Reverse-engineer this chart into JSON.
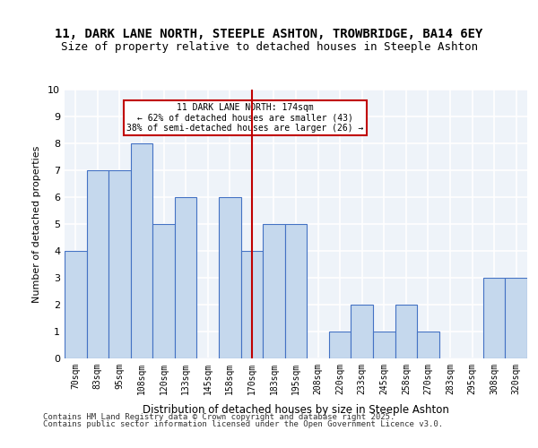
{
  "title": "11, DARK LANE NORTH, STEEPLE ASHTON, TROWBRIDGE, BA14 6EY",
  "subtitle": "Size of property relative to detached houses in Steeple Ashton",
  "xlabel": "Distribution of detached houses by size in Steeple Ashton",
  "ylabel": "Number of detached properties",
  "categories": [
    "70sqm",
    "83sqm",
    "95sqm",
    "108sqm",
    "120sqm",
    "133sqm",
    "145sqm",
    "158sqm",
    "170sqm",
    "183sqm",
    "195sqm",
    "208sqm",
    "220sqm",
    "233sqm",
    "245sqm",
    "258sqm",
    "270sqm",
    "283sqm",
    "295sqm",
    "308sqm",
    "320sqm"
  ],
  "bar_heights": [
    4,
    7,
    7,
    8,
    5,
    6,
    0,
    6,
    4,
    5,
    5,
    0,
    1,
    2,
    1,
    2,
    1,
    0,
    0,
    3,
    3
  ],
  "bar_color": "#c5d8ed",
  "bar_edge_color": "#4472c4",
  "background_color": "#eef3f9",
  "grid_color": "#ffffff",
  "ref_line_x": 8,
  "ref_line_color": "#c00000",
  "annotation_text": "11 DARK LANE NORTH: 174sqm\n← 62% of detached houses are smaller (43)\n38% of semi-detached houses are larger (26) →",
  "annotation_box_color": "#c00000",
  "ylim": [
    0,
    10
  ],
  "yticks": [
    0,
    1,
    2,
    3,
    4,
    5,
    6,
    7,
    8,
    9,
    10
  ],
  "footer1": "Contains HM Land Registry data © Crown copyright and database right 2025.",
  "footer2": "Contains public sector information licensed under the Open Government Licence v3.0."
}
